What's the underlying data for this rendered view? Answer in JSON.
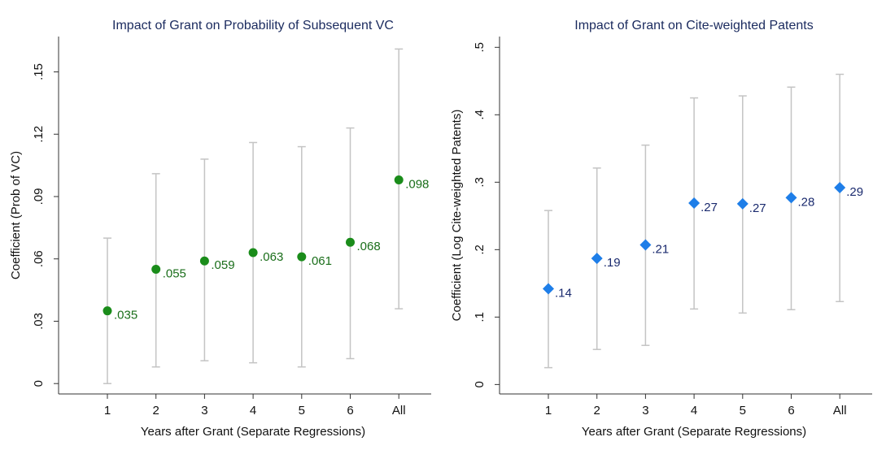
{
  "chart_data": [
    {
      "type": "dot-errorbar",
      "title": "Impact of Grant on Probability of Subsequent VC",
      "ylabel": "Coefficient (Prob of VC)",
      "xlabel": "Years after Grant (Separate Regressions)",
      "categories": [
        "1",
        "2",
        "3",
        "4",
        "5",
        "6",
        "All"
      ],
      "values": [
        0.035,
        0.055,
        0.059,
        0.063,
        0.061,
        0.068,
        0.098
      ],
      "value_labels": [
        ".035",
        ".055",
        ".059",
        ".063",
        ".061",
        ".068",
        ".098"
      ],
      "low": [
        0.0,
        0.008,
        0.011,
        0.01,
        0.008,
        0.012,
        0.036
      ],
      "high": [
        0.07,
        0.101,
        0.108,
        0.116,
        0.114,
        0.123,
        0.161
      ],
      "color": "#1a8c1a",
      "label_color": "#1a6e1a",
      "marker": "circle",
      "ylim": [
        -0.005,
        0.167
      ],
      "yticks": [
        0,
        {
          "value": 0.03,
          "label": ".03"
        },
        {
          "value": 0.06,
          "label": ".06"
        },
        {
          "value": 0.09,
          "label": ".09"
        },
        {
          "value": 0.12,
          "label": ".12"
        },
        {
          "value": 0.15,
          "label": ".15"
        }
      ]
    },
    {
      "type": "dot-errorbar",
      "title": "Impact of Grant on Cite-weighted Patents",
      "ylabel": "Coefficient (Log Cite-weighted Patents)",
      "xlabel": "Years after Grant (Separate Regressions)",
      "categories": [
        "1",
        "2",
        "3",
        "4",
        "5",
        "6",
        "All"
      ],
      "values": [
        0.142,
        0.187,
        0.207,
        0.269,
        0.268,
        0.277,
        0.292
      ],
      "value_labels": [
        ".14",
        ".19",
        ".21",
        ".27",
        ".27",
        ".28",
        ".29"
      ],
      "low": [
        0.025,
        0.052,
        0.058,
        0.112,
        0.106,
        0.111,
        0.123
      ],
      "high": [
        0.258,
        0.321,
        0.355,
        0.425,
        0.428,
        0.441,
        0.46
      ],
      "color": "#1e7ee8",
      "label_color": "#1a2a6e",
      "marker": "diamond",
      "ylim": [
        -0.014,
        0.516
      ],
      "yticks": [
        0,
        {
          "value": 0.1,
          "label": ".1"
        },
        {
          "value": 0.2,
          "label": ".2"
        },
        {
          "value": 0.3,
          "label": ".3"
        },
        {
          "value": 0.4,
          "label": ".4"
        },
        {
          "value": 0.5,
          "label": ".5"
        }
      ]
    }
  ]
}
